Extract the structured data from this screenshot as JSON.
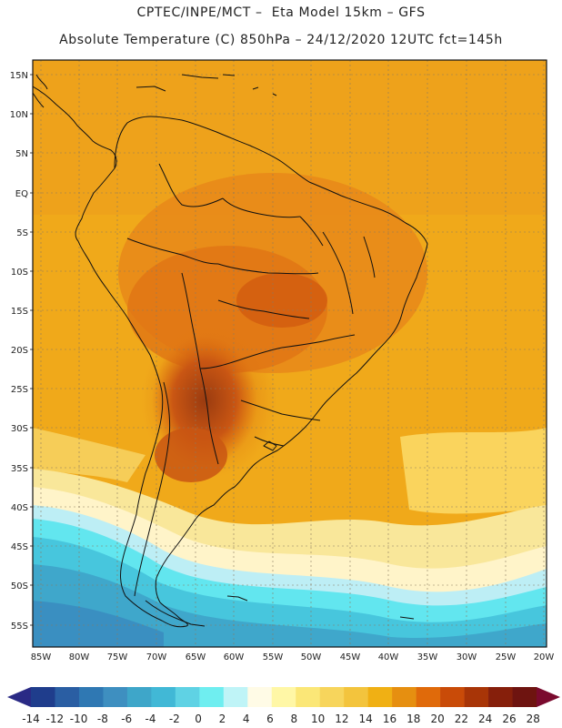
{
  "header": {
    "line1": "CPTEC/INPE/MCT –  Eta Model 15km – GFS",
    "line2": "Absolute Temperature (C) 850hPa – 24/12/2020 12UTC fct=145h"
  },
  "map": {
    "lat_labels": [
      "15N",
      "10N",
      "5N",
      "EQ",
      "5S",
      "10S",
      "15S",
      "20S",
      "25S",
      "30S",
      "35S",
      "40S",
      "45S",
      "50S",
      "55S"
    ],
    "lon_labels": [
      "85W",
      "80W",
      "75W",
      "70W",
      "65W",
      "60W",
      "55W",
      "50W",
      "45W",
      "40W",
      "35W",
      "30W",
      "25W",
      "20W"
    ]
  },
  "colorbar": {
    "labels": [
      "-14",
      "-12",
      "-10",
      "-8",
      "-6",
      "-4",
      "-2",
      "0",
      "2",
      "4",
      "6",
      "8",
      "10",
      "12",
      "14",
      "16",
      "18",
      "20",
      "22",
      "24",
      "26",
      "28"
    ],
    "colors": [
      "#1f3d8c",
      "#2a5ea3",
      "#2f78b3",
      "#3e8fc0",
      "#3ea6c9",
      "#41b8d6",
      "#5fd2e4",
      "#6feef0",
      "#bff4f7",
      "#fffbe6",
      "#fff7a6",
      "#fbe777",
      "#f7d55c",
      "#f3c43d",
      "#f0b014",
      "#e68f10",
      "#e06a0a",
      "#c94b08",
      "#a83507",
      "#861f0b",
      "#6e1410"
    ],
    "low_arrow_color": "#2a2a85",
    "high_arrow_color": "#7a0a2e"
  }
}
